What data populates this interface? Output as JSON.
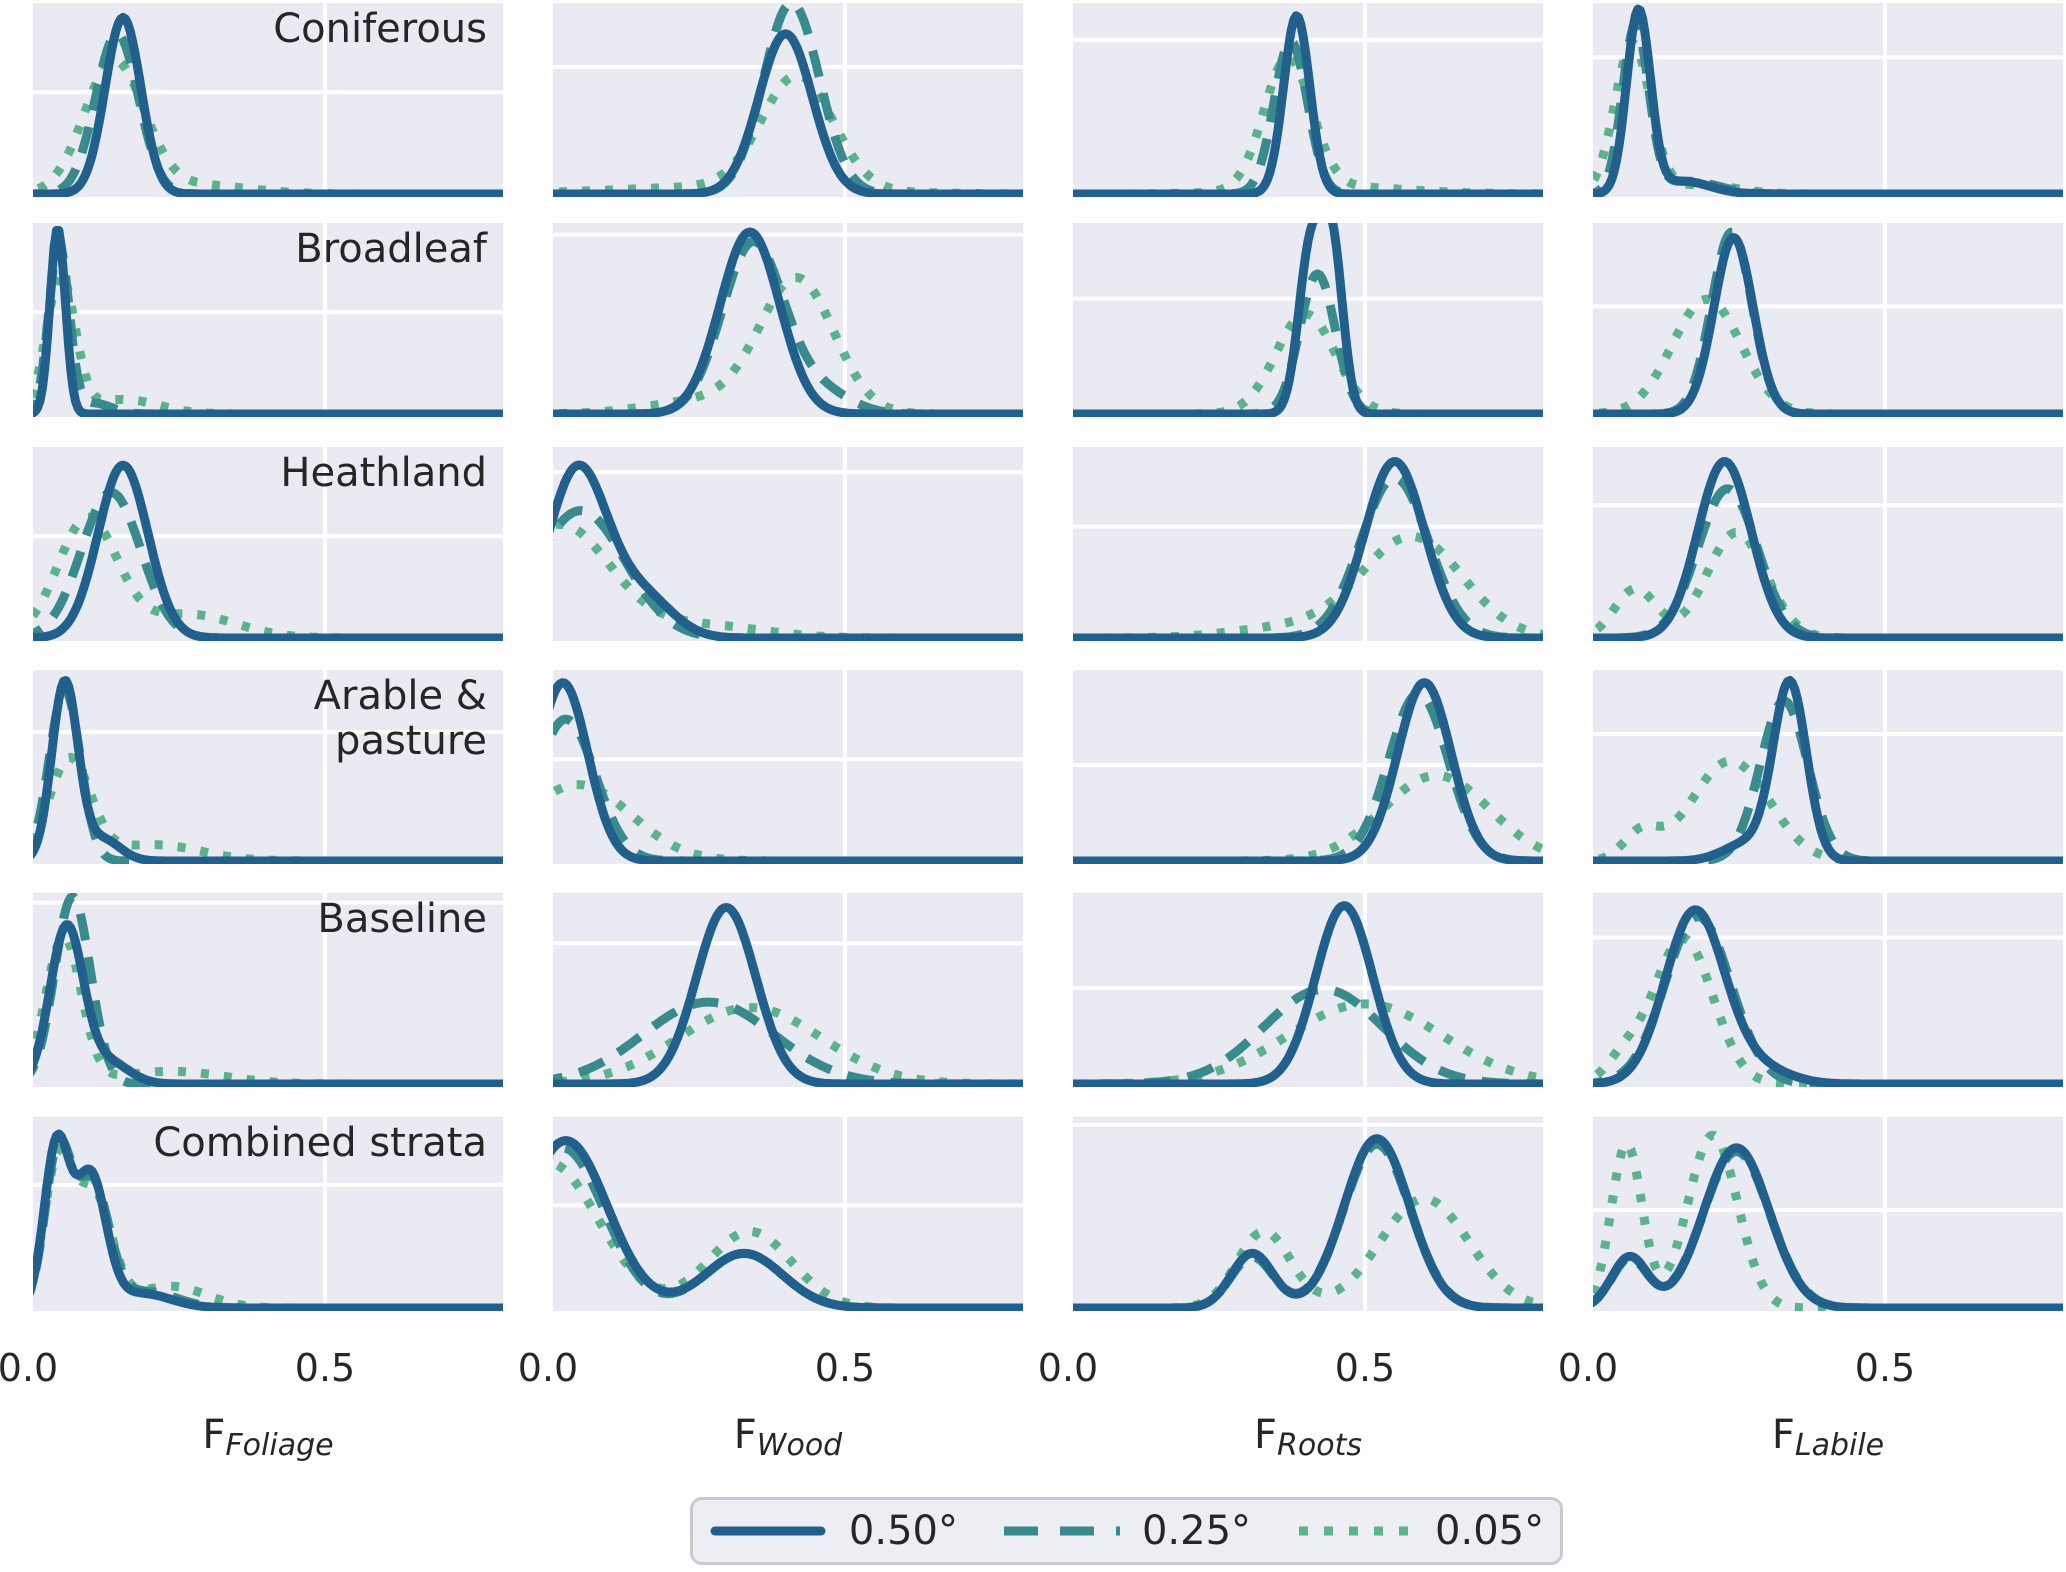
{
  "chart_data": {
    "type": "kde_grid",
    "description": "Facet grid of kernel density estimates: rows = land cover strata, columns = carbon allocation fractions, series = model spatial resolution",
    "rows": [
      "Coniferous",
      "Broadleaf",
      "Heathland",
      "Arable &\npasture",
      "Baseline",
      "Combined strata"
    ],
    "columns": [
      {
        "base": "F",
        "sub": "Foliage"
      },
      {
        "base": "F",
        "sub": "Wood"
      },
      {
        "base": "F",
        "sub": "Roots"
      },
      {
        "base": "F",
        "sub": "Labile"
      }
    ],
    "x_ticks": [
      "0.0",
      "0.5"
    ],
    "x_tick_values": [
      0.0,
      0.5
    ],
    "xlim": [
      0.0,
      0.8
    ],
    "grid": true,
    "legend_position": "bottom-center",
    "series": [
      {
        "name": "0.50°",
        "style": "solid",
        "color": "#215f8c"
      },
      {
        "name": "0.25°",
        "style": "dashed",
        "color": "#398a8c"
      },
      {
        "name": "0.05°",
        "style": "dotted",
        "color": "#5cb28c"
      }
    ],
    "colors": {
      "panel_background": "#eaeaf2",
      "figure_background": "#ffffff",
      "gridline": "#ffffff",
      "text": "#262626",
      "legend_background": "#edeef4",
      "legend_border": "#c9c9d3"
    },
    "note": "curves encoded as gaussian mixture components [mean_x, sigma_x, peak_height_fraction_of_panel]",
    "panels": [
      {
        "row": 0,
        "col": 0,
        "gy": 0.46,
        "solid": [
          [
            0.16,
            0.03,
            0.97
          ]
        ],
        "dashed": [
          [
            0.15,
            0.036,
            0.88
          ]
        ],
        "dotted": [
          [
            0.145,
            0.05,
            0.72
          ],
          [
            0.28,
            0.09,
            0.05
          ]
        ]
      },
      {
        "row": 0,
        "col": 1,
        "gy": 0.33,
        "solid": [
          [
            0.4,
            0.045,
            0.88
          ]
        ],
        "dashed": [
          [
            0.41,
            0.047,
            1.05
          ]
        ],
        "dotted": [
          [
            0.42,
            0.06,
            0.62
          ],
          [
            0.3,
            0.18,
            0.04
          ]
        ]
      },
      {
        "row": 0,
        "col": 2,
        "gy": 0.19,
        "solid": [
          [
            0.385,
            0.022,
            0.98
          ]
        ],
        "dashed": [
          [
            0.375,
            0.028,
            0.84
          ]
        ],
        "dotted": [
          [
            0.37,
            0.04,
            0.72
          ],
          [
            0.45,
            0.12,
            0.04
          ]
        ]
      },
      {
        "row": 0,
        "col": 3,
        "gy": 0.28,
        "solid": [
          [
            0.085,
            0.02,
            1.0
          ],
          [
            0.16,
            0.045,
            0.07
          ]
        ],
        "dashed": [
          [
            0.08,
            0.022,
            0.92
          ],
          [
            0.17,
            0.05,
            0.07
          ]
        ],
        "dotted": [
          [
            0.075,
            0.03,
            0.82
          ],
          [
            0.19,
            0.06,
            0.05
          ]
        ]
      },
      {
        "row": 1,
        "col": 0,
        "gy": 0.46,
        "solid": [
          [
            0.05,
            0.013,
            1.02
          ]
        ],
        "dashed": [
          [
            0.052,
            0.017,
            0.93
          ],
          [
            0.11,
            0.03,
            0.06
          ]
        ],
        "dotted": [
          [
            0.055,
            0.024,
            0.75
          ],
          [
            0.16,
            0.06,
            0.08
          ]
        ]
      },
      {
        "row": 1,
        "col": 1,
        "gy": 0.06,
        "solid": [
          [
            0.34,
            0.05,
            1.0
          ]
        ],
        "dashed": [
          [
            0.345,
            0.052,
            0.94
          ],
          [
            0.46,
            0.05,
            0.12
          ]
        ],
        "dotted": [
          [
            0.42,
            0.062,
            0.72
          ],
          [
            0.28,
            0.1,
            0.08
          ]
        ]
      },
      {
        "row": 1,
        "col": 2,
        "gy": 0.39,
        "solid": [
          [
            0.408,
            0.02,
            0.9
          ],
          [
            0.445,
            0.018,
            0.9
          ]
        ],
        "dashed": [
          [
            0.42,
            0.03,
            0.77
          ]
        ],
        "dotted": [
          [
            0.4,
            0.05,
            0.55
          ]
        ]
      },
      {
        "row": 1,
        "col": 3,
        "gy": 0.43,
        "solid": [
          [
            0.245,
            0.033,
            0.97
          ]
        ],
        "dashed": [
          [
            0.242,
            0.034,
            1.0
          ]
        ],
        "dotted": [
          [
            0.2,
            0.058,
            0.63
          ]
        ]
      },
      {
        "row": 2,
        "col": 0,
        "gy": 0.46,
        "solid": [
          [
            0.16,
            0.042,
            0.95
          ]
        ],
        "dashed": [
          [
            0.14,
            0.05,
            0.8
          ]
        ],
        "dotted": [
          [
            0.1,
            0.05,
            0.65
          ],
          [
            0.27,
            0.08,
            0.13
          ]
        ]
      },
      {
        "row": 2,
        "col": 1,
        "gy": 0.13,
        "solid": [
          [
            0.05,
            0.05,
            0.93
          ],
          [
            0.16,
            0.05,
            0.22
          ]
        ],
        "dashed": [
          [
            0.055,
            0.075,
            0.7
          ]
        ],
        "dotted": [
          [
            0.02,
            0.085,
            0.62
          ],
          [
            0.26,
            0.1,
            0.07
          ]
        ]
      },
      {
        "row": 2,
        "col": 2,
        "gy": 0.41,
        "solid": [
          [
            0.55,
            0.05,
            0.97
          ]
        ],
        "dashed": [
          [
            0.55,
            0.057,
            0.88
          ]
        ],
        "dotted": [
          [
            0.58,
            0.085,
            0.55
          ],
          [
            0.38,
            0.1,
            0.06
          ]
        ]
      },
      {
        "row": 2,
        "col": 3,
        "gy": 0.3,
        "solid": [
          [
            0.23,
            0.045,
            0.97
          ]
        ],
        "dashed": [
          [
            0.235,
            0.05,
            0.82
          ]
        ],
        "dotted": [
          [
            0.25,
            0.05,
            0.58
          ],
          [
            0.08,
            0.035,
            0.27
          ]
        ]
      },
      {
        "row": 3,
        "col": 0,
        "gy": 0.32,
        "solid": [
          [
            0.062,
            0.022,
            0.98
          ],
          [
            0.125,
            0.03,
            0.12
          ]
        ],
        "dashed": [
          [
            0.062,
            0.026,
            0.94
          ]
        ],
        "dotted": [
          [
            0.07,
            0.035,
            0.55
          ],
          [
            0.21,
            0.08,
            0.09
          ]
        ]
      },
      {
        "row": 3,
        "col": 1,
        "gy": 0.46,
        "solid": [
          [
            0.025,
            0.042,
            0.98
          ]
        ],
        "dashed": [
          [
            0.03,
            0.05,
            0.78
          ]
        ],
        "dotted": [
          [
            0.05,
            0.09,
            0.42
          ]
        ]
      },
      {
        "row": 3,
        "col": 2,
        "gy": 0.49,
        "solid": [
          [
            0.6,
            0.045,
            0.98
          ]
        ],
        "dashed": [
          [
            0.59,
            0.05,
            0.92
          ]
        ],
        "dotted": [
          [
            0.62,
            0.09,
            0.47
          ]
        ]
      },
      {
        "row": 3,
        "col": 3,
        "gy": 0.33,
        "solid": [
          [
            0.34,
            0.028,
            0.97
          ],
          [
            0.27,
            0.04,
            0.1
          ]
        ],
        "dashed": [
          [
            0.33,
            0.04,
            0.88
          ]
        ],
        "dotted": [
          [
            0.24,
            0.065,
            0.55
          ],
          [
            0.09,
            0.03,
            0.15
          ]
        ]
      },
      {
        "row": 4,
        "col": 0,
        "gy": 0.05,
        "solid": [
          [
            0.065,
            0.028,
            0.86
          ],
          [
            0.135,
            0.035,
            0.12
          ]
        ],
        "dashed": [
          [
            0.075,
            0.03,
            1.03
          ]
        ],
        "dotted": [
          [
            0.06,
            0.03,
            0.8
          ],
          [
            0.24,
            0.09,
            0.07
          ]
        ]
      },
      {
        "row": 4,
        "col": 1,
        "gy": 0.26,
        "solid": [
          [
            0.3,
            0.05,
            0.97
          ]
        ],
        "dashed": [
          [
            0.27,
            0.11,
            0.45
          ]
        ],
        "dotted": [
          [
            0.34,
            0.12,
            0.42
          ]
        ]
      },
      {
        "row": 4,
        "col": 2,
        "gy": 0.49,
        "solid": [
          [
            0.465,
            0.048,
            0.98
          ]
        ],
        "dashed": [
          [
            0.43,
            0.1,
            0.52
          ]
        ],
        "dotted": [
          [
            0.5,
            0.13,
            0.44
          ]
        ]
      },
      {
        "row": 4,
        "col": 3,
        "gy": 0.23,
        "solid": [
          [
            0.18,
            0.05,
            0.95
          ],
          [
            0.29,
            0.05,
            0.08
          ]
        ],
        "dashed": [
          [
            0.185,
            0.055,
            0.92
          ]
        ],
        "dotted": [
          [
            0.16,
            0.05,
            0.8
          ],
          [
            0.06,
            0.03,
            0.12
          ]
        ]
      },
      {
        "row": 5,
        "col": 0,
        "gy": 0.35,
        "solid": [
          [
            0.048,
            0.021,
            0.88
          ],
          [
            0.105,
            0.026,
            0.72
          ],
          [
            0.19,
            0.05,
            0.08
          ]
        ],
        "dashed": [
          [
            0.05,
            0.022,
            0.84
          ],
          [
            0.108,
            0.028,
            0.68
          ],
          [
            0.2,
            0.05,
            0.09
          ]
        ],
        "dotted": [
          [
            0.05,
            0.024,
            0.78
          ],
          [
            0.11,
            0.03,
            0.62
          ],
          [
            0.24,
            0.06,
            0.12
          ]
        ]
      },
      {
        "row": 5,
        "col": 1,
        "gy": 0.455,
        "solid": [
          [
            0.03,
            0.07,
            0.92
          ],
          [
            0.33,
            0.065,
            0.3
          ]
        ],
        "dashed": [
          [
            0.025,
            0.07,
            0.88
          ],
          [
            0.33,
            0.065,
            0.3
          ]
        ],
        "dotted": [
          [
            0.0,
            0.085,
            0.8
          ],
          [
            0.34,
            0.07,
            0.42
          ]
        ]
      },
      {
        "row": 5,
        "col": 2,
        "gy": 0.04,
        "solid": [
          [
            0.31,
            0.035,
            0.3
          ],
          [
            0.52,
            0.055,
            0.93
          ]
        ],
        "dashed": [
          [
            0.31,
            0.036,
            0.28
          ],
          [
            0.52,
            0.056,
            0.9
          ]
        ],
        "dotted": [
          [
            0.33,
            0.045,
            0.42
          ],
          [
            0.6,
            0.075,
            0.6
          ]
        ]
      },
      {
        "row": 5,
        "col": 3,
        "gy": 0.48,
        "solid": [
          [
            0.07,
            0.03,
            0.28
          ],
          [
            0.25,
            0.055,
            0.88
          ]
        ],
        "dashed": [
          [
            0.07,
            0.03,
            0.27
          ],
          [
            0.25,
            0.056,
            0.86
          ]
        ],
        "dotted": [
          [
            0.065,
            0.026,
            0.9
          ],
          [
            0.21,
            0.042,
            0.95
          ]
        ]
      }
    ]
  },
  "legend": {
    "items": [
      {
        "label": "0.50°"
      },
      {
        "label": "0.25°"
      },
      {
        "label": "0.05°"
      }
    ]
  }
}
